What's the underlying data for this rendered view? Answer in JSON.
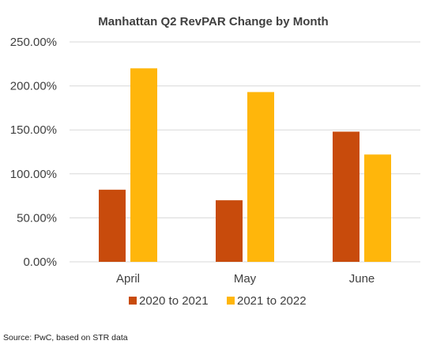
{
  "chart_data": {
    "type": "bar",
    "title": "Manhattan Q2 RevPAR Change by Month",
    "categories": [
      "April",
      "May",
      "June"
    ],
    "series": [
      {
        "name": "2020 to 2021",
        "values": [
          82,
          70,
          148
        ],
        "color": "#c84b0c"
      },
      {
        "name": "2021 to 2022",
        "values": [
          220,
          193,
          122
        ],
        "color": "#ffb60b"
      }
    ],
    "ylim": [
      0,
      250
    ],
    "yticks": [
      0,
      50,
      100,
      150,
      200,
      250
    ],
    "ytick_labels": [
      "0.00%",
      "50.00%",
      "100.00%",
      "150.00%",
      "200.00%",
      "250.00%"
    ],
    "grid": true,
    "gridline_color": "#d9d9d9",
    "legend_position": "bottom"
  },
  "source_note": "Source: PwC, based on STR data"
}
